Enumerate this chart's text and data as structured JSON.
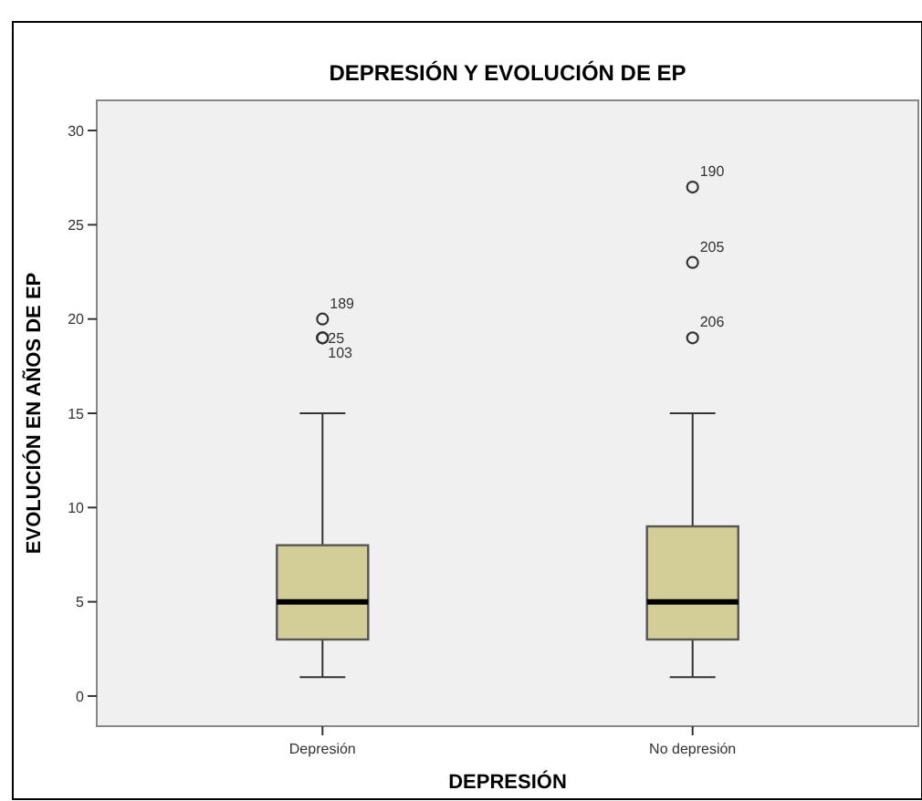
{
  "chart_data": {
    "type": "box",
    "title": "DEPRESIÓN Y EVOLUCIÓN DE EP",
    "xlabel": "DEPRESIÓN",
    "ylabel": "EVOLUCIÓN EN AÑOS DE EP",
    "categories": [
      "Depresión",
      "No depresión"
    ],
    "series": [
      {
        "color": "#d3ce97",
        "boxes": [
          {
            "low": 1,
            "q1": 3,
            "median": 5,
            "q3": 8,
            "high": 15,
            "outliers": [
              20,
              19,
              19
            ]
          },
          {
            "low": 1,
            "q1": 3,
            "median": 5,
            "q3": 9,
            "high": 15,
            "outliers": [
              27,
              23,
              19
            ]
          }
        ]
      }
    ],
    "ylim": [
      -1.6,
      31.6
    ],
    "yticks": [
      0,
      5,
      10,
      15,
      20,
      25,
      30
    ],
    "grid": false,
    "marker": "circle",
    "annotations": [
      "189",
      "25",
      "103",
      "190",
      "205",
      "206"
    ]
  }
}
